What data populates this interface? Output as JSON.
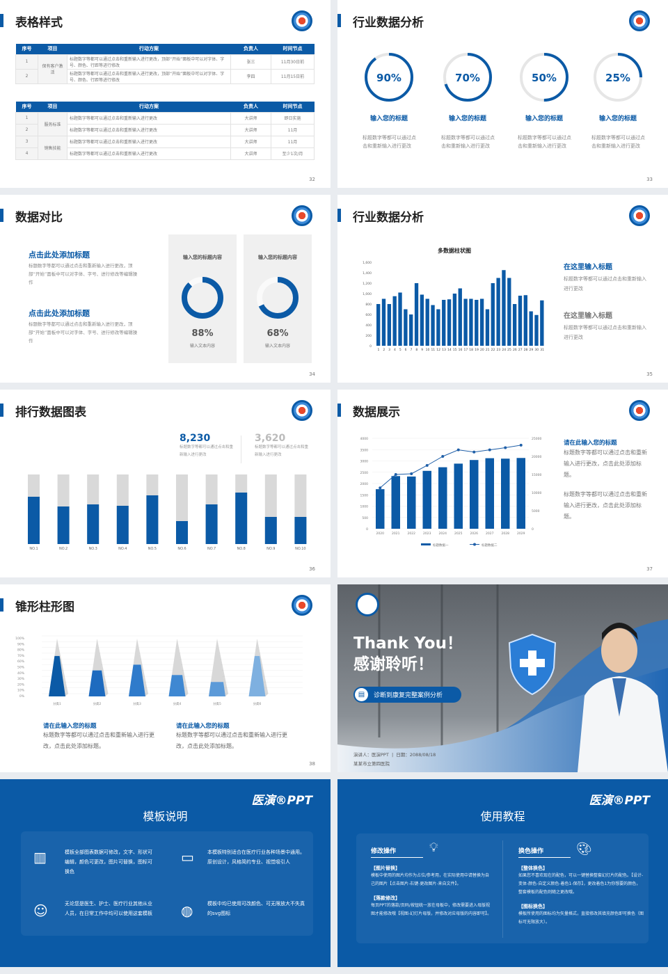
{
  "brand_color": "#0b5aa6",
  "s32": {
    "title": "表格样式",
    "page": "32",
    "headers": [
      "序号",
      "项目",
      "行动方案",
      "负责人",
      "时间节点"
    ],
    "table1": {
      "group": "保有客户激活",
      "rows": [
        [
          "1",
          "标题数字等都可以通过点击和重新输入进行更改，顶部“开始”面板中可以对字体、字号、颜色、行距等进行修改",
          "张三",
          "11月30日前"
        ],
        [
          "2",
          "标题数字等都可以通过点击和重新输入进行更改，顶部“开始”面板中可以对字体、字号、颜色、行距等进行修改",
          "李四",
          "11月15日前"
        ]
      ]
    },
    "table2": {
      "groups": [
        "服务标准",
        "销售技能"
      ],
      "rows": [
        [
          "1",
          "标题数字等都可以通过点击和重新输入进行更改",
          "大讲师",
          "即日实施"
        ],
        [
          "2",
          "标题数字等都可以通过点击和重新输入进行更改",
          "大讲师",
          "11月"
        ],
        [
          "3",
          "标题数字等都可以通过点击和重新输入进行更改",
          "大讲师",
          "11月"
        ],
        [
          "4",
          "标题数字等都可以通过点击和重新输入进行更改",
          "大讲师",
          "至少1次/月"
        ]
      ]
    }
  },
  "s33": {
    "title": "行业数据分析",
    "page": "33",
    "items": [
      {
        "value": 90,
        "label": "90%",
        "title": "输入您的标题",
        "desc": "标题数字等都可以通过点击和重新输入进行更改"
      },
      {
        "value": 70,
        "label": "70%",
        "title": "输入您的标题",
        "desc": "标题数字等都可以通过点击和重新输入进行更改"
      },
      {
        "value": 50,
        "label": "50%",
        "title": "输入您的标题",
        "desc": "标题数字等都可以通过点击和重新输入进行更改"
      },
      {
        "value": 25,
        "label": "25%",
        "title": "输入您的标题",
        "desc": "标题数字等都可以通过点击和重新输入进行更改"
      }
    ]
  },
  "s34": {
    "title": "数据对比",
    "page": "34",
    "blocks": [
      {
        "heading": "点击此处添加标题",
        "text": "标题数字等都可以通过点击和重新输入进行更改，顶部“开始”面板中可以对字体、字号、进行修改等编辑操作"
      },
      {
        "heading": "点击此处添加标题",
        "text": "标题数字等都可以通过点击和重新输入进行更改，顶部“开始”面板中可以对字体、字号、进行修改等编辑操作"
      }
    ],
    "panels": [
      {
        "title": "输入您的标题内容",
        "value": 88,
        "label": "88%",
        "caption": "输入文本内容"
      },
      {
        "title": "输入您的标题内容",
        "value": 68,
        "label": "68%",
        "caption": "输入文本内容"
      }
    ]
  },
  "s35": {
    "title": "行业数据分析",
    "page": "35",
    "side": [
      {
        "heading": "在这里输入标题",
        "text": "标题数字等都可以通过点击和重新输入进行更改"
      },
      {
        "heading": "在这里输入标题",
        "text": "标题数字等都可以通过点击和重新输入进行更改"
      }
    ]
  },
  "s36": {
    "title": "排行数据图表",
    "page": "36",
    "stats": [
      {
        "value": "8,230",
        "text": "标题数字等都可以通过点击和重新输入进行更改"
      },
      {
        "value": "3,620",
        "text": "标题数字等都可以通过点击和重新输入进行更改"
      }
    ]
  },
  "s37": {
    "title": "数据展示",
    "page": "37",
    "side_heading": "请在此输入您的标题",
    "side_texts": [
      "标题数字等都可以通过点击和重新输入进行更改，点击此处添加标题。",
      "标题数字等都可以通过点击和重新输入进行更改，点击此处添加标题。"
    ]
  },
  "s38": {
    "title": "锥形柱形图",
    "page": "38",
    "blocks": [
      {
        "heading": "请在此输入您的标题",
        "text": "标题数字等都可以通过点击和重新输入进行更改，点击此处添加标题。"
      },
      {
        "heading": "请在此输入您的标题",
        "text": "标题数字等都可以通过点击和重新输入进行更改，点击此处添加标题。"
      }
    ]
  },
  "thanks": {
    "line1": "Thank You！",
    "line2": "感谢聆听！",
    "button": "诊断到康复完整案例分析",
    "presenter": "演讲人：医演PPT",
    "date": "日期：2088/08/18",
    "org": "某某市立第四医院"
  },
  "notes": {
    "brand": "医演®PPT",
    "title": "模板说明",
    "items": [
      "模板全部图表数据可修改，文字、形状可编辑，颜色可更改，图片可替换，图标可换色",
      "本模板特别适合在医疗行业各种场景中通用。原创设计，风格简约专业、视觉吸引人",
      "无论您是医生、护士、医疗行业其他从业人员，在日常工作中均可以使用这套模板",
      "模板中均已使用可改颜色、可无限放大不失真的svg图标"
    ]
  },
  "tutorial": {
    "brand": "医演®PPT",
    "title": "使用教程",
    "left": {
      "heading": "修改操作",
      "sections": [
        {
          "h": "【图片替换】",
          "t": "模板中使用的图片均作为占位/参考用，在实际使用中请替换为自己的图片【点击图片-右键-更改图片-来自文件】。"
        },
        {
          "h": "【落款修改】",
          "t": "每页PPT的落款/页码/按钮统一放在母板中，修改需要进入母版视图才能修改哦【视图-幻灯片母版，并修改对应母版的内容即可】。"
        }
      ]
    },
    "right": {
      "heading": "换色操作",
      "sections": [
        {
          "h": "【整体换色】",
          "t": "如果您不喜欢现在的配色，可以一键替换整套幻灯片的配色。【设计-变体-颜色-自定义颜色-着色1-保存】，更改着色1为你想要的颜色，整套模板的配色则随之更改哦。"
        },
        {
          "h": "【图标换色】",
          "t": "模板所使用的图标均为矢量格式，直接修改其填充颜色即可换色（图标可无限放大）。"
        }
      ]
    }
  },
  "chart_data": [
    {
      "type": "bar",
      "title": "多数据柱状图",
      "categories": [
        "1",
        "2",
        "3",
        "4",
        "5",
        "6",
        "7",
        "8",
        "9",
        "10",
        "11",
        "12",
        "13",
        "14",
        "15",
        "16",
        "17",
        "18",
        "19",
        "20",
        "21",
        "22",
        "23",
        "24",
        "25",
        "26",
        "27",
        "28",
        "29",
        "30",
        "31"
      ],
      "values": [
        800,
        900,
        800,
        950,
        1020,
        700,
        600,
        1200,
        980,
        900,
        780,
        700,
        880,
        890,
        1000,
        1100,
        900,
        900,
        880,
        900,
        700,
        1200,
        1300,
        1450,
        1300,
        800,
        960,
        970,
        660,
        590,
        870
      ],
      "ylim": [
        0,
        1600
      ],
      "yticks": [
        "0",
        "200",
        "400",
        "600",
        "800",
        "1,000",
        "1,200",
        "1,400",
        "1,600"
      ],
      "color": "#0b5aa6"
    },
    {
      "type": "bar",
      "title": "",
      "categories": [
        "NO.1",
        "NO.2",
        "NO.3",
        "NO.4",
        "NO.5",
        "NO.6",
        "NO.7",
        "NO.8",
        "NO.9",
        "NO.10"
      ],
      "values": [
        68,
        54,
        57,
        55,
        70,
        33,
        57,
        74,
        39,
        39
      ],
      "ylim": [
        0,
        100
      ],
      "colors": {
        "fill": "#0b5aa6",
        "track": "#d9d9d9"
      }
    },
    {
      "type": "bar+line",
      "categories": [
        "2020",
        "2021",
        "2022",
        "2023",
        "2024",
        "2025",
        "2026",
        "2027",
        "2028",
        "2029"
      ],
      "series": [
        {
          "name": "标题数据一",
          "axis": "left",
          "values": [
            1750,
            2330,
            2310,
            2560,
            2720,
            2880,
            3040,
            3120,
            3100,
            3130
          ]
        },
        {
          "name": "标题数据二",
          "axis": "right",
          "values": [
            11300,
            15000,
            15200,
            17500,
            20000,
            21800,
            21200,
            21800,
            22400,
            23100
          ]
        }
      ],
      "yleft": {
        "ylim": [
          0,
          4000
        ],
        "ticks": [
          "0",
          "500",
          "1000",
          "1500",
          "2000",
          "2500",
          "3000",
          "3500",
          "4000"
        ]
      },
      "yright": {
        "ylim": [
          0,
          25000
        ],
        "ticks": [
          "0",
          "5000",
          "10000",
          "15000",
          "20000",
          "25000"
        ]
      },
      "legend": "bottom"
    },
    {
      "type": "pyramid",
      "categories": [
        "分类1",
        "分类2",
        "分类3",
        "分类4",
        "分类5",
        "分类6"
      ],
      "values": [
        70,
        45,
        55,
        37,
        25,
        70
      ],
      "ylim": [
        0,
        100
      ],
      "yticks": [
        "0%",
        "10%",
        "20%",
        "30%",
        "40%",
        "50%",
        "60%",
        "70%",
        "80%",
        "90%",
        "100%"
      ],
      "colors": [
        "#0b5aa6",
        "#1e6bbf",
        "#2f7bcb",
        "#3f88d2",
        "#5c9ad8",
        "#7eb0e0"
      ]
    }
  ]
}
